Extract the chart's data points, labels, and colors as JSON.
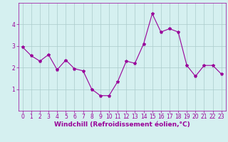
{
  "x": [
    0,
    1,
    2,
    3,
    4,
    5,
    6,
    7,
    8,
    9,
    10,
    11,
    12,
    13,
    14,
    15,
    16,
    17,
    18,
    19,
    20,
    21,
    22,
    23
  ],
  "y": [
    2.95,
    2.55,
    2.3,
    2.6,
    1.9,
    2.35,
    1.95,
    1.85,
    1.0,
    0.7,
    0.7,
    1.35,
    2.3,
    2.2,
    3.1,
    4.5,
    3.65,
    3.8,
    3.65,
    2.1,
    1.6,
    2.1,
    2.1,
    1.7
  ],
  "line_color": "#990099",
  "marker": "*",
  "marker_size": 3,
  "bg_color": "#d5f0f0",
  "grid_color": "#aacccc",
  "xlabel": "Windchill (Refroidissement éolien,°C)",
  "xlabel_color": "#990099",
  "tick_color": "#990099",
  "xlim": [
    -0.5,
    23.5
  ],
  "ylim": [
    0,
    5.0
  ],
  "yticks": [
    1,
    2,
    3,
    4
  ],
  "xticks": [
    0,
    1,
    2,
    3,
    4,
    5,
    6,
    7,
    8,
    9,
    10,
    11,
    12,
    13,
    14,
    15,
    16,
    17,
    18,
    19,
    20,
    21,
    22,
    23
  ],
  "axis_fontsize": 6.5,
  "tick_fontsize": 5.5,
  "linewidth": 0.8
}
